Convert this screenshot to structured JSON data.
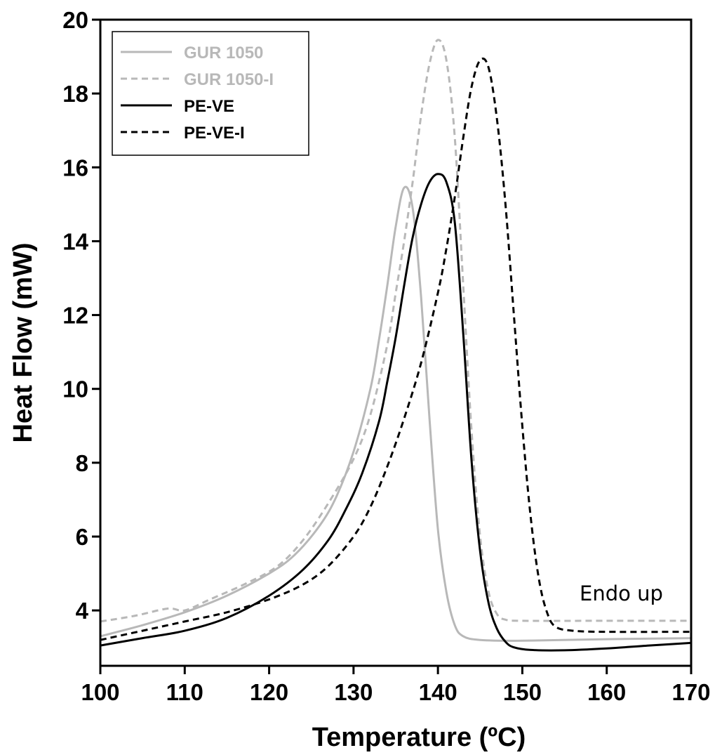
{
  "chart_data": {
    "type": "line",
    "xlabel": "Temperature (ºC)",
    "ylabel": "Heat Flow (mW)",
    "xlim": [
      100,
      170
    ],
    "ylim": [
      2.5,
      20
    ],
    "x_ticks": [
      100,
      110,
      120,
      130,
      140,
      150,
      160,
      170
    ],
    "y_ticks": [
      4,
      6,
      8,
      10,
      12,
      14,
      16,
      18,
      20
    ],
    "grid": false,
    "legend_position": "top-left",
    "annotation": "Endo up",
    "series": [
      {
        "name": "GUR 1050",
        "color": "#b8b8b8",
        "dash": "solid",
        "points": [
          [
            100,
            3.3
          ],
          [
            105,
            3.6
          ],
          [
            110,
            3.95
          ],
          [
            115,
            4.4
          ],
          [
            120,
            5.0
          ],
          [
            123,
            5.5
          ],
          [
            126,
            6.3
          ],
          [
            128,
            7.1
          ],
          [
            130,
            8.3
          ],
          [
            132,
            10.0
          ],
          [
            133,
            11.3
          ],
          [
            134,
            12.8
          ],
          [
            135,
            14.4
          ],
          [
            136,
            15.45
          ],
          [
            137,
            14.9
          ],
          [
            138,
            12.5
          ],
          [
            139,
            9.2
          ],
          [
            140,
            6.2
          ],
          [
            141,
            4.5
          ],
          [
            142,
            3.6
          ],
          [
            143,
            3.3
          ],
          [
            145,
            3.2
          ],
          [
            150,
            3.18
          ],
          [
            160,
            3.22
          ],
          [
            170,
            3.25
          ]
        ]
      },
      {
        "name": "GUR 1050-I",
        "color": "#b8b8b8",
        "dash": "dashed",
        "points": [
          [
            100,
            3.7
          ],
          [
            104,
            3.85
          ],
          [
            108,
            4.05
          ],
          [
            110,
            4.0
          ],
          [
            113,
            4.3
          ],
          [
            117,
            4.7
          ],
          [
            121,
            5.2
          ],
          [
            124,
            5.9
          ],
          [
            127,
            6.9
          ],
          [
            130,
            8.1
          ],
          [
            132,
            9.3
          ],
          [
            134,
            11.2
          ],
          [
            135,
            12.6
          ],
          [
            136,
            14.0
          ],
          [
            137,
            15.6
          ],
          [
            138,
            17.4
          ],
          [
            139,
            18.8
          ],
          [
            140,
            19.45
          ],
          [
            141,
            18.9
          ],
          [
            142,
            16.8
          ],
          [
            143,
            12.8
          ],
          [
            144,
            8.8
          ],
          [
            145,
            6.0
          ],
          [
            146,
            4.5
          ],
          [
            147,
            3.9
          ],
          [
            148,
            3.75
          ],
          [
            150,
            3.72
          ],
          [
            160,
            3.72
          ],
          [
            170,
            3.72
          ]
        ]
      },
      {
        "name": "PE-VE",
        "color": "#000000",
        "dash": "solid",
        "points": [
          [
            100,
            3.05
          ],
          [
            105,
            3.25
          ],
          [
            110,
            3.45
          ],
          [
            115,
            3.8
          ],
          [
            120,
            4.4
          ],
          [
            124,
            5.1
          ],
          [
            127,
            5.9
          ],
          [
            129,
            6.7
          ],
          [
            131,
            7.7
          ],
          [
            133,
            9.1
          ],
          [
            134,
            10.2
          ],
          [
            135,
            11.4
          ],
          [
            136,
            12.8
          ],
          [
            137,
            14.1
          ],
          [
            138,
            15.0
          ],
          [
            139,
            15.6
          ],
          [
            140,
            15.82
          ],
          [
            141,
            15.6
          ],
          [
            142,
            14.5
          ],
          [
            143,
            11.5
          ],
          [
            144,
            8.0
          ],
          [
            145,
            5.6
          ],
          [
            146,
            4.2
          ],
          [
            147,
            3.5
          ],
          [
            148,
            3.15
          ],
          [
            149,
            3.0
          ],
          [
            151,
            2.93
          ],
          [
            155,
            2.92
          ],
          [
            160,
            2.97
          ],
          [
            165,
            3.05
          ],
          [
            170,
            3.12
          ]
        ]
      },
      {
        "name": "PE-VE-I",
        "color": "#000000",
        "dash": "dashed",
        "points": [
          [
            100,
            3.2
          ],
          [
            105,
            3.45
          ],
          [
            110,
            3.7
          ],
          [
            115,
            3.95
          ],
          [
            120,
            4.3
          ],
          [
            124,
            4.7
          ],
          [
            127,
            5.2
          ],
          [
            130,
            6.0
          ],
          [
            132,
            6.8
          ],
          [
            134,
            7.9
          ],
          [
            136,
            9.2
          ],
          [
            138,
            10.7
          ],
          [
            140,
            12.6
          ],
          [
            141,
            13.8
          ],
          [
            142,
            15.2
          ],
          [
            143,
            16.8
          ],
          [
            144,
            18.2
          ],
          [
            145,
            18.9
          ],
          [
            146,
            18.7
          ],
          [
            147,
            17.3
          ],
          [
            148,
            15.0
          ],
          [
            149,
            12.0
          ],
          [
            150,
            9.0
          ],
          [
            151,
            6.5
          ],
          [
            152,
            4.8
          ],
          [
            153,
            3.9
          ],
          [
            154,
            3.55
          ],
          [
            156,
            3.45
          ],
          [
            160,
            3.42
          ],
          [
            170,
            3.42
          ]
        ]
      }
    ]
  }
}
